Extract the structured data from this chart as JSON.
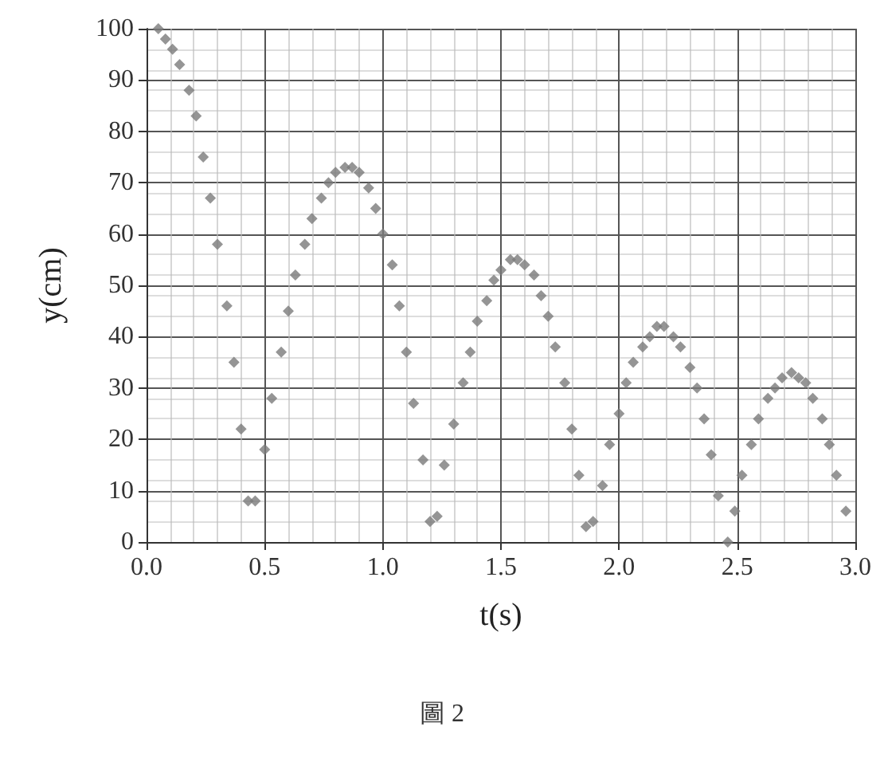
{
  "chart_data": {
    "type": "scatter",
    "xlabel": "t(s)",
    "ylabel": "y(cm)",
    "annotations": [
      "圖 2"
    ],
    "x": [
      0.05,
      0.08,
      0.11,
      0.14,
      0.18,
      0.21,
      0.24,
      0.27,
      0.3,
      0.34,
      0.37,
      0.4,
      0.43,
      0.46,
      0.5,
      0.53,
      0.57,
      0.6,
      0.63,
      0.67,
      0.7,
      0.74,
      0.77,
      0.8,
      0.84,
      0.87,
      0.9,
      0.94,
      0.97,
      1.0,
      1.04,
      1.07,
      1.1,
      1.13,
      1.17,
      1.2,
      1.23,
      1.26,
      1.3,
      1.34,
      1.37,
      1.4,
      1.44,
      1.47,
      1.5,
      1.54,
      1.57,
      1.6,
      1.64,
      1.67,
      1.7,
      1.73,
      1.77,
      1.8,
      1.83,
      1.86,
      1.89,
      1.93,
      1.96,
      2.0,
      2.03,
      2.06,
      2.1,
      2.13,
      2.16,
      2.19,
      2.23,
      2.26,
      2.3,
      2.33,
      2.36,
      2.39,
      2.42,
      2.46,
      2.49,
      2.52,
      2.56,
      2.59,
      2.63,
      2.66,
      2.69,
      2.73,
      2.76,
      2.79,
      2.82,
      2.86,
      2.89,
      2.92,
      2.96
    ],
    "values": [
      100,
      98,
      96,
      93,
      88,
      83,
      75,
      67,
      58,
      46,
      35,
      22,
      8,
      8,
      18,
      28,
      37,
      45,
      52,
      58,
      63,
      67,
      70,
      72,
      73,
      73,
      72,
      69,
      65,
      60,
      54,
      46,
      37,
      27,
      16,
      4,
      5,
      15,
      23,
      31,
      37,
      43,
      47,
      51,
      53,
      55,
      55,
      54,
      52,
      48,
      44,
      38,
      31,
      22,
      13,
      3,
      4,
      11,
      19,
      25,
      31,
      35,
      38,
      40,
      42,
      42,
      40,
      38,
      34,
      30,
      24,
      17,
      9,
      0,
      6,
      13,
      19,
      24,
      28,
      30,
      32,
      33,
      32,
      31,
      28,
      24,
      19,
      13,
      6
    ],
    "color": "#7a7a7a",
    "marker": "diamond",
    "grid": true,
    "xlim": [
      0,
      3
    ],
    "xticks": [
      {
        "value": 0,
        "label": "0.0"
      },
      0.5,
      {
        "value": 1,
        "label": "1.0"
      },
      1.5,
      {
        "value": 2,
        "label": "2.0"
      },
      2.5,
      {
        "value": 3,
        "label": "3.0"
      }
    ],
    "ylim": [
      0,
      100
    ],
    "yticks": [
      0,
      10,
      20,
      30,
      40,
      50,
      60,
      70,
      80,
      90,
      100
    ]
  }
}
